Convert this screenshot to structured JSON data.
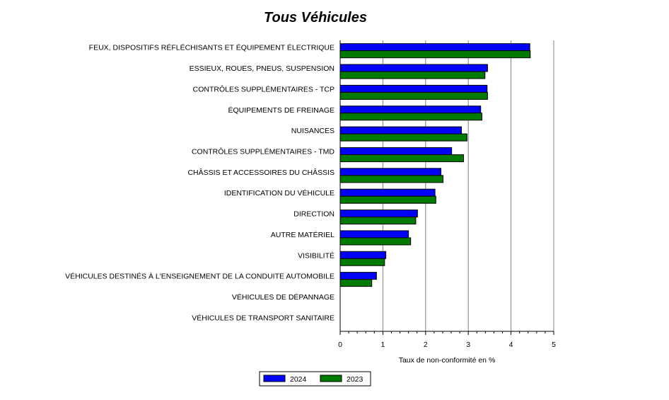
{
  "chart_data": {
    "type": "bar",
    "orientation": "horizontal",
    "title": "Tous Véhicules",
    "xlabel": "Taux de non-conformité en %",
    "ylabel": "",
    "xlim": [
      0,
      5
    ],
    "xticks": [
      "0",
      "1",
      "2",
      "3",
      "4",
      "5"
    ],
    "grid": "vertical",
    "legend_position": "bottom",
    "categories": [
      "FEUX, DISPOSITIFS RÉFLÉCHISANTS ET ÉQUIPEMENT ÉLECTRIQUE",
      "ESSIEUX, ROUES, PNEUS, SUSPENSION",
      "CONTRÔLES SUPPLÉMENTAIRES - TCP",
      "ÉQUIPEMENTS DE FREINAGE",
      "NUISANCES",
      "CONTRÔLES SUPPLÉMENTAIRES - TMD",
      "CHÂSSIS ET ACCESSOIRES DU CHÂSSIS",
      "IDENTIFICATION DU VÉHICULE",
      "DIRECTION",
      "AUTRE MATÉRIEL",
      "VISIBILITÉ",
      "VÉHICULES DESTINÉS À L'ENSEIGNEMENT DE LA CONDUITE AUTOMOBILE",
      "VÉHICULES DE DÉPANNAGE",
      "VÉHICULES DE TRANSPORT SANITAIRE"
    ],
    "series": [
      {
        "name": "2024",
        "color": "#0000ff",
        "values": [
          4.44,
          3.45,
          3.44,
          3.29,
          2.84,
          2.61,
          2.36,
          2.22,
          1.81,
          1.6,
          1.07,
          0.85,
          0,
          0
        ]
      },
      {
        "name": "2023",
        "color": "#007a00",
        "values": [
          4.45,
          3.39,
          3.45,
          3.32,
          2.97,
          2.89,
          2.41,
          2.24,
          1.77,
          1.65,
          1.04,
          0.74,
          0,
          0
        ]
      }
    ]
  }
}
